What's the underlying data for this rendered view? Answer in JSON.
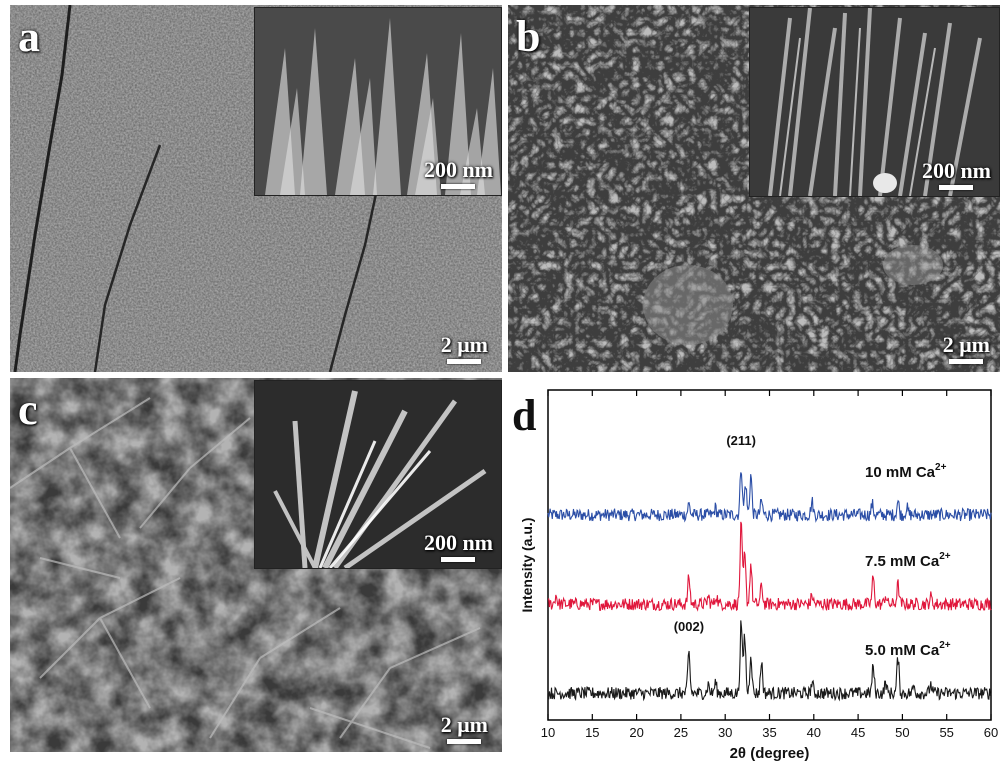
{
  "panels": {
    "a": {
      "letter": "a",
      "inset_scale": "200 nm",
      "main_scale": "2 μm"
    },
    "b": {
      "letter": "b",
      "inset_scale": "200 nm",
      "main_scale": "2 μm"
    },
    "c": {
      "letter": "c",
      "inset_scale": "200 nm",
      "main_scale": "2 μm"
    },
    "d": {
      "letter": "d"
    }
  },
  "colors": {
    "blue": "#2b4ea6",
    "red": "#e0173c",
    "black": "#1a1a1a"
  },
  "chart_data": {
    "type": "line",
    "xlabel": "2θ (degree)",
    "ylabel": "Intensity (a.u.)",
    "xlim": [
      10,
      60
    ],
    "xticks": [
      10,
      15,
      20,
      25,
      30,
      35,
      40,
      45,
      50,
      55,
      60
    ],
    "series": [
      {
        "name": "10 mM Ca",
        "superscript": "2+",
        "color": "#2b4ea6",
        "offset": 2.0,
        "peaks": [
          [
            25.9,
            0.12
          ],
          [
            28.9,
            0.08
          ],
          [
            31.8,
            0.55
          ],
          [
            32.3,
            0.35
          ],
          [
            32.9,
            0.45
          ],
          [
            34.1,
            0.15
          ],
          [
            39.8,
            0.15
          ],
          [
            46.6,
            0.12
          ],
          [
            49.5,
            0.15
          ],
          [
            50.5,
            0.08
          ]
        ]
      },
      {
        "name": "7.5 mM Ca",
        "superscript": "2+",
        "color": "#e0173c",
        "offset": 1.0,
        "peaks": [
          [
            10.9,
            0.1
          ],
          [
            25.9,
            0.3
          ],
          [
            28.1,
            0.08
          ],
          [
            29.0,
            0.1
          ],
          [
            31.8,
            0.9
          ],
          [
            32.2,
            0.55
          ],
          [
            32.9,
            0.45
          ],
          [
            34.1,
            0.2
          ],
          [
            39.8,
            0.1
          ],
          [
            46.7,
            0.3
          ],
          [
            48.1,
            0.1
          ],
          [
            49.5,
            0.22
          ],
          [
            53.2,
            0.08
          ]
        ]
      },
      {
        "name": "5.0 mM Ca",
        "superscript": "2+",
        "color": "#1a1a1a",
        "offset": 0.0,
        "peaks": [
          [
            25.9,
            0.45
          ],
          [
            28.1,
            0.1
          ],
          [
            28.9,
            0.12
          ],
          [
            31.8,
            0.8
          ],
          [
            32.2,
            0.65
          ],
          [
            32.9,
            0.45
          ],
          [
            34.1,
            0.35
          ],
          [
            39.8,
            0.12
          ],
          [
            46.7,
            0.3
          ],
          [
            48.1,
            0.12
          ],
          [
            49.5,
            0.4
          ],
          [
            51.3,
            0.08
          ],
          [
            53.2,
            0.1
          ]
        ]
      }
    ],
    "annotations": [
      {
        "text": "(211)",
        "x": 31.8,
        "series": 0
      },
      {
        "text": "(002)",
        "x": 25.9,
        "series": 2
      }
    ]
  }
}
